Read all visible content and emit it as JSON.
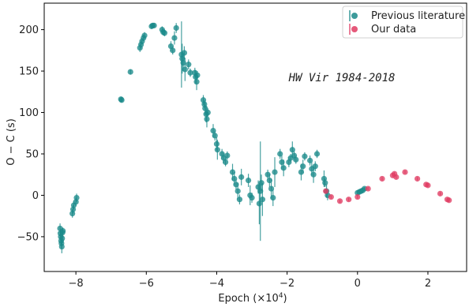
{
  "chart_data": {
    "type": "scatter",
    "title": "",
    "xlabel": "Epoch (×10",
    "xlabel_sup": "4",
    "xlabel_end": ")",
    "ylabel": "O − C (s)",
    "xlim": [
      -8.9,
      3.1
    ],
    "ylim": [
      -92,
      232
    ],
    "xticks": [
      -8,
      -6,
      -4,
      -2,
      0,
      2
    ],
    "xtick_labels": [
      "−8",
      "−6",
      "−4",
      "−2",
      "0",
      "2"
    ],
    "yticks": [
      -50,
      0,
      50,
      100,
      150,
      200
    ],
    "ytick_labels": [
      "−50",
      "0",
      "50",
      "100",
      "150",
      "200"
    ],
    "grid": false,
    "legend_position": "top-right",
    "annotation": "HW Vir 1984-2018",
    "series": [
      {
        "name": "Previous literature",
        "color": "#1b8a8a",
        "points": [
          [
            -8.45,
            -40,
            6
          ],
          [
            -8.44,
            -46,
            5
          ],
          [
            -8.43,
            -50,
            5
          ],
          [
            -8.42,
            -55,
            5
          ],
          [
            -8.41,
            -58,
            6
          ],
          [
            -8.4,
            -62,
            8
          ],
          [
            -8.39,
            -52,
            5
          ],
          [
            -8.38,
            -45,
            5
          ],
          [
            -8.37,
            -43,
            4
          ],
          [
            -8.1,
            -22,
            5
          ],
          [
            -8.08,
            -17,
            5
          ],
          [
            -8.06,
            -12,
            5
          ],
          [
            -8.0,
            -8,
            5
          ],
          [
            -7.98,
            -3,
            5
          ],
          [
            -6.72,
            116,
            3
          ],
          [
            -6.7,
            115,
            3
          ],
          [
            -6.45,
            149,
            3
          ],
          [
            -6.18,
            178,
            5
          ],
          [
            -6.15,
            182,
            5
          ],
          [
            -6.12,
            186,
            4
          ],
          [
            -6.08,
            190,
            4
          ],
          [
            -6.05,
            193,
            4
          ],
          [
            -5.85,
            204,
            3
          ],
          [
            -5.82,
            205,
            3
          ],
          [
            -5.78,
            205,
            3
          ],
          [
            -5.55,
            200,
            4
          ],
          [
            -5.52,
            197,
            4
          ],
          [
            -5.48,
            196,
            4
          ],
          [
            -5.3,
            180,
            6
          ],
          [
            -5.25,
            175,
            5
          ],
          [
            -5.2,
            190,
            8
          ],
          [
            -5.15,
            202,
            6
          ],
          [
            -5.0,
            170,
            40
          ],
          [
            -4.98,
            165,
            18
          ],
          [
            -4.95,
            160,
            10
          ],
          [
            -4.92,
            172,
            8
          ],
          [
            -4.9,
            152,
            14
          ],
          [
            -4.8,
            158,
            6
          ],
          [
            -4.75,
            148,
            5
          ],
          [
            -4.62,
            148,
            6
          ],
          [
            -4.6,
            143,
            8
          ],
          [
            -4.57,
            137,
            10
          ],
          [
            -4.55,
            145,
            5
          ],
          [
            -4.38,
            115,
            6
          ],
          [
            -4.35,
            110,
            5
          ],
          [
            -4.33,
            105,
            8
          ],
          [
            -4.3,
            98,
            10
          ],
          [
            -4.28,
            92,
            10
          ],
          [
            -4.25,
            100,
            5
          ],
          [
            -4.1,
            78,
            8
          ],
          [
            -4.05,
            72,
            6
          ],
          [
            -4.0,
            62,
            8
          ],
          [
            -3.98,
            55,
            12
          ],
          [
            -3.85,
            50,
            6
          ],
          [
            -3.8,
            45,
            6
          ],
          [
            -3.75,
            40,
            5
          ],
          [
            -3.7,
            48,
            5
          ],
          [
            -3.55,
            28,
            10
          ],
          [
            -3.5,
            20,
            8
          ],
          [
            -3.45,
            13,
            6
          ],
          [
            -3.4,
            5,
            10
          ],
          [
            -3.35,
            -5,
            6
          ],
          [
            -3.3,
            22,
            10
          ],
          [
            -3.1,
            18,
            8
          ],
          [
            -3.05,
            0,
            12
          ],
          [
            -3.0,
            -3,
            6
          ],
          [
            -2.82,
            10,
            8
          ],
          [
            -2.79,
            -10,
            25
          ],
          [
            -2.76,
            5,
            60
          ],
          [
            -2.73,
            15,
            10
          ],
          [
            -2.7,
            -5,
            20
          ],
          [
            -2.55,
            25,
            6
          ],
          [
            -2.5,
            18,
            8
          ],
          [
            -2.45,
            8,
            12
          ],
          [
            -2.4,
            -3,
            10
          ],
          [
            -2.35,
            28,
            18
          ],
          [
            -2.2,
            50,
            6
          ],
          [
            -2.15,
            40,
            8
          ],
          [
            -2.1,
            33,
            10
          ],
          [
            -1.95,
            40,
            6
          ],
          [
            -1.9,
            45,
            5
          ],
          [
            -1.85,
            55,
            10
          ],
          [
            -1.8,
            48,
            6
          ],
          [
            -1.75,
            43,
            5
          ],
          [
            -1.6,
            28,
            10
          ],
          [
            -1.55,
            35,
            8
          ],
          [
            -1.5,
            47,
            5
          ],
          [
            -1.35,
            42,
            6
          ],
          [
            -1.3,
            32,
            8
          ],
          [
            -1.25,
            25,
            10
          ],
          [
            -1.2,
            35,
            6
          ],
          [
            -1.15,
            50,
            5
          ],
          [
            -0.95,
            20,
            10
          ],
          [
            -0.92,
            15,
            5
          ],
          [
            -0.88,
            5,
            8
          ],
          [
            -0.85,
            0,
            6
          ],
          [
            0.0,
            3,
            3
          ],
          [
            0.05,
            4,
            3
          ],
          [
            0.1,
            5,
            3
          ],
          [
            0.15,
            6,
            3
          ],
          [
            0.2,
            8,
            2
          ]
        ]
      },
      {
        "name": "Our data",
        "color": "#e03c63",
        "points": [
          [
            -0.9,
            5,
            2
          ],
          [
            -0.75,
            -2,
            2
          ],
          [
            -0.5,
            -7,
            2
          ],
          [
            -0.25,
            -5,
            2
          ],
          [
            0.0,
            -2,
            2
          ],
          [
            0.3,
            8,
            2
          ],
          [
            0.7,
            20,
            2
          ],
          [
            1.0,
            24,
            2
          ],
          [
            1.05,
            26,
            2
          ],
          [
            1.1,
            22,
            2
          ],
          [
            1.35,
            28,
            2
          ],
          [
            1.7,
            20,
            2
          ],
          [
            1.95,
            13,
            2
          ],
          [
            2.0,
            12,
            2
          ],
          [
            2.35,
            2,
            2
          ],
          [
            2.55,
            -5,
            2
          ],
          [
            2.6,
            -6,
            2
          ]
        ]
      }
    ]
  }
}
